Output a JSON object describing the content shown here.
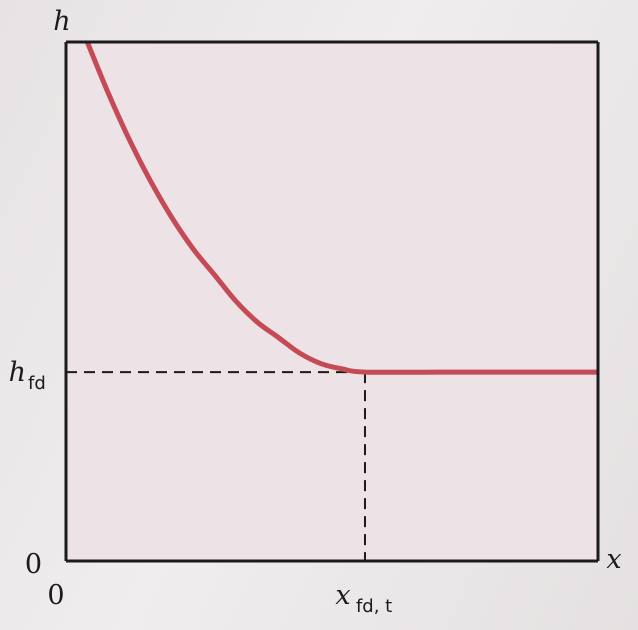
{
  "chart_data": {
    "type": "line",
    "title": "",
    "xlabel": "x",
    "ylabel": "h",
    "x_ticks": [
      {
        "value": 0,
        "label": "0"
      },
      {
        "value": 0.562,
        "label_main": "x",
        "label_sub": "fd, t"
      }
    ],
    "y_ticks": [
      {
        "value": 0,
        "label": "0"
      },
      {
        "value": 0.364,
        "label_main": "h",
        "label_sub": "fd"
      }
    ],
    "xlim": [
      0,
      1
    ],
    "ylim": [
      0,
      1
    ],
    "grid": false,
    "series": [
      {
        "color": "#c44a55",
        "x": [
          0.04,
          0.08,
          0.12,
          0.16,
          0.2,
          0.24,
          0.28,
          0.32,
          0.36,
          0.4,
          0.44,
          0.48,
          0.52,
          0.562,
          0.7,
          0.85,
          1.0
        ],
        "y": [
          1.0,
          0.9,
          0.81,
          0.73,
          0.66,
          0.6,
          0.55,
          0.5,
          0.46,
          0.43,
          0.4,
          0.38,
          0.37,
          0.364,
          0.364,
          0.364,
          0.364
        ]
      }
    ],
    "reference_lines": {
      "x": 0.562,
      "y": 0.364,
      "style": "dashed"
    },
    "colors": {
      "plot_background": "#ede2e6",
      "axes": "#1b1b1b",
      "curve": "#c44a55"
    }
  }
}
